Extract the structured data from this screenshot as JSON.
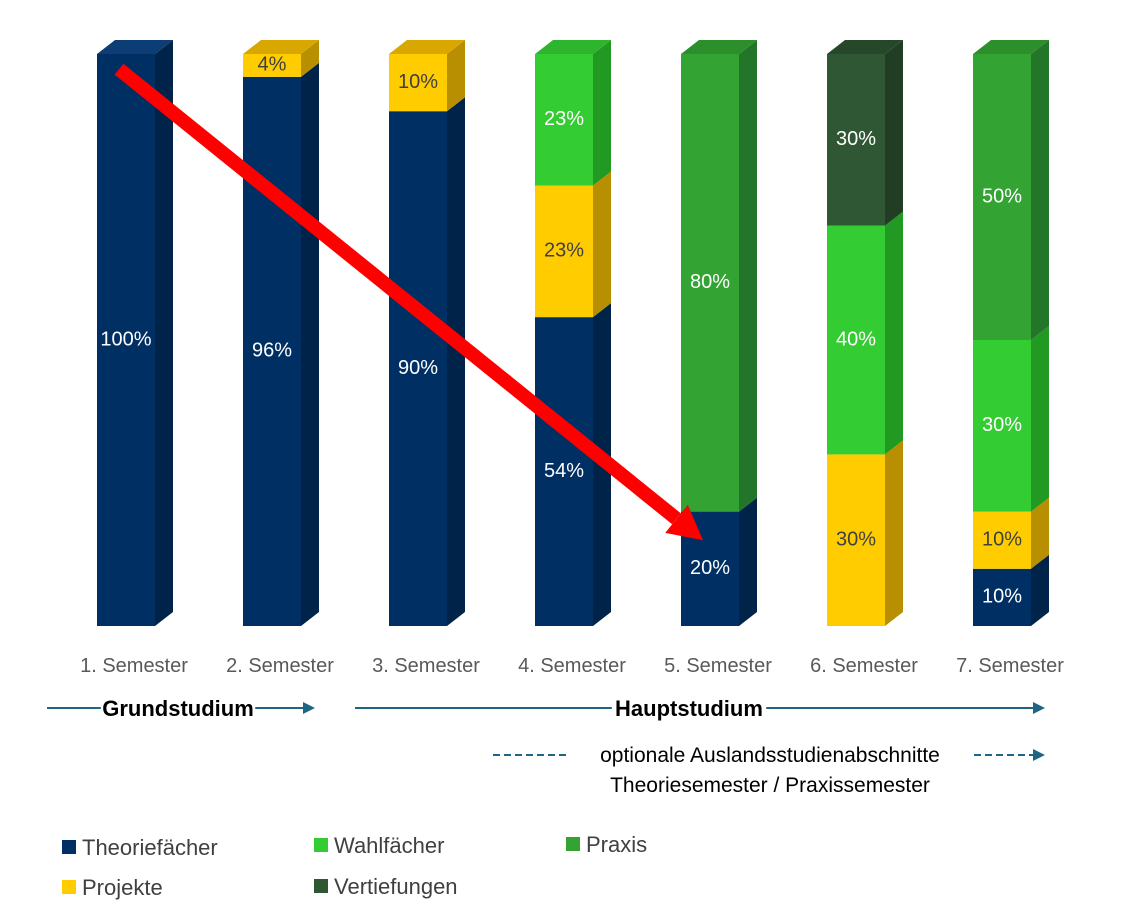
{
  "chart_data": {
    "type": "bar",
    "stacked": true,
    "categories": [
      "1. Semester",
      "2. Semester",
      "3. Semester",
      "4. Semester",
      "5. Semester",
      "6. Semester",
      "7. Semester"
    ],
    "series": [
      {
        "name": "Theoriefächer",
        "color": "#002F63",
        "side": "#00234A",
        "top": "#0C3D75",
        "text": "#ffffff",
        "values": [
          100,
          96,
          90,
          54,
          20,
          0,
          10
        ]
      },
      {
        "name": "Projekte",
        "color": "#FFCC00",
        "side": "#B88F00",
        "top": "#D9A800",
        "text": "#404040",
        "values": [
          0,
          4,
          10,
          23,
          0,
          30,
          10
        ]
      },
      {
        "name": "Wahlfächer",
        "color": "#33CC33",
        "side": "#229922",
        "top": "#2DB52D",
        "text": "#ffffff",
        "values": [
          0,
          0,
          0,
          23,
          0,
          40,
          30
        ]
      },
      {
        "name": "Praxis",
        "color": "#33A333",
        "side": "#23752A",
        "top": "#2C8F2C",
        "text": "#ffffff",
        "values": [
          0,
          0,
          0,
          0,
          80,
          0,
          50
        ]
      },
      {
        "name": "Vertiefungen",
        "color": "#2F5733",
        "side": "#213D24",
        "top": "#27472A",
        "text": "#ffffff",
        "values": [
          0,
          0,
          0,
          0,
          0,
          30,
          0
        ]
      }
    ],
    "data_labels": [
      [
        "100%",
        "",
        "",
        "",
        ""
      ],
      [
        "96%",
        "4%",
        "",
        "",
        ""
      ],
      [
        "90%",
        "10%",
        "",
        "",
        ""
      ],
      [
        "54%",
        "23%",
        "23%",
        "",
        ""
      ],
      [
        "20%",
        "",
        "",
        "80%",
        ""
      ],
      [
        "",
        "30%",
        "40%",
        "",
        "30%"
      ],
      [
        "10%",
        "10%",
        "30%",
        "50%",
        ""
      ]
    ],
    "ylim": [
      0,
      100
    ],
    "trend_arrow": {
      "from_category": 0,
      "from_value": 97,
      "to_category": 4,
      "to_value": 15,
      "color": "#FF0000"
    },
    "phases": [
      {
        "label": "Grundstudium",
        "from_category": 0,
        "to_category": 1
      },
      {
        "label": "Hauptstudium",
        "from_category": 2,
        "to_category": 6
      }
    ],
    "optional_note": {
      "line1": "optionale Auslandsstudienabschnitte",
      "line2": "Theoriesemester / Praxissemester",
      "from_category": 3,
      "to_category": 6
    },
    "legend": [
      {
        "name": "Theoriefächer",
        "color": "#002F63"
      },
      {
        "name": "Wahlfächer",
        "color": "#33CC33"
      },
      {
        "name": "Praxis",
        "color": "#33A333"
      },
      {
        "name": "Projekte",
        "color": "#FFCC00"
      },
      {
        "name": "Vertiefungen",
        "color": "#2F5733"
      }
    ],
    "grid": false,
    "legend_position": "bottom"
  }
}
